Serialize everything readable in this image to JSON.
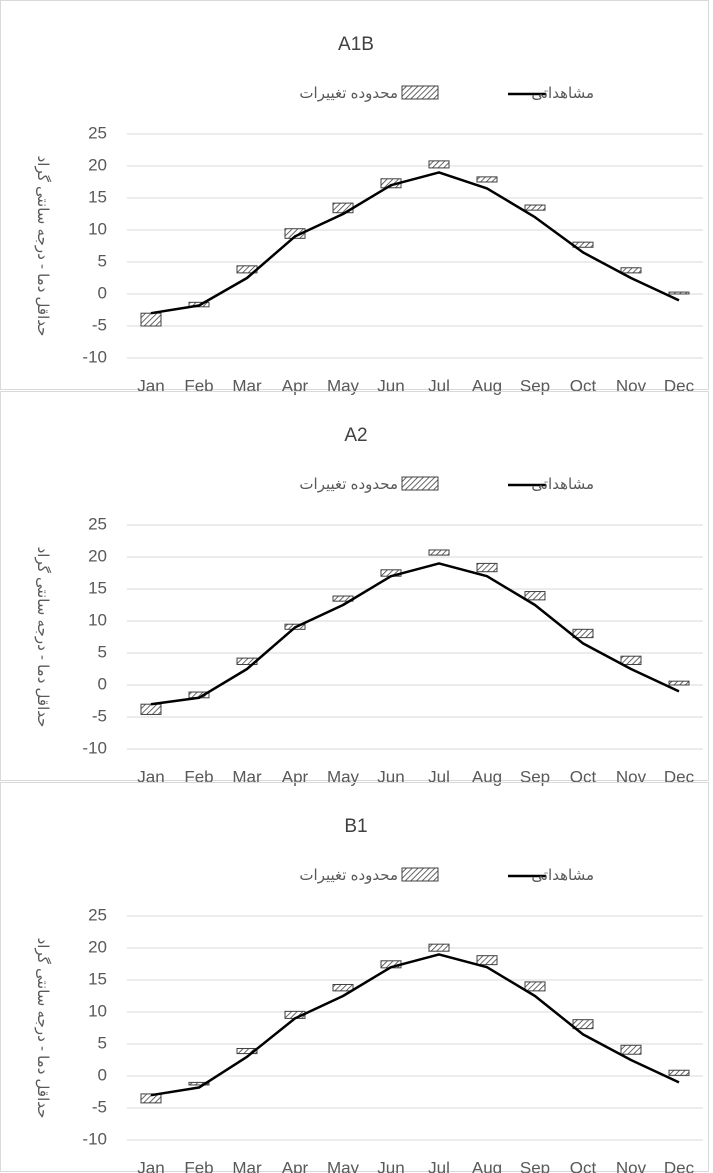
{
  "chart_data": [
    {
      "type": "range-line",
      "title": "A1B",
      "y_label": "حداقل دما - درجه سانتی گراد",
      "categories": [
        "Jan",
        "Feb",
        "Mar",
        "Apr",
        "May",
        "Jun",
        "Jul",
        "Aug",
        "Sep",
        "Oct",
        "Nov",
        "Dec"
      ],
      "series": [
        {
          "name": "محدوده تغییرات",
          "color": "#404040",
          "low": [
            -5,
            -2,
            3.3,
            8.7,
            12.7,
            16.6,
            19.7,
            17.5,
            13.1,
            7.3,
            3.3,
            0
          ],
          "high": [
            -3,
            -1.3,
            4.4,
            10.2,
            14.2,
            18,
            20.8,
            18.3,
            13.9,
            8.1,
            4.1,
            0.3
          ]
        },
        {
          "name": "مشاهداتی",
          "color": "#000000",
          "values": [
            -3,
            -1.8,
            2.5,
            9,
            12.5,
            17,
            19,
            16.5,
            12,
            6.5,
            2.5,
            -1
          ]
        }
      ],
      "ylim": [
        -10,
        25
      ],
      "yticks": [
        -10,
        -5,
        0,
        5,
        10,
        15,
        20,
        25
      ],
      "grid": true
    },
    {
      "type": "range-line",
      "title": "A2",
      "y_label": "حداقل دما - درجه سانتی گراد",
      "categories": [
        "Jan",
        "Feb",
        "Mar",
        "Apr",
        "May",
        "Jun",
        "Jul",
        "Aug",
        "Sep",
        "Oct",
        "Nov",
        "Dec"
      ],
      "series": [
        {
          "name": "محدوده تغییرات",
          "color": "#404040",
          "low": [
            -4.6,
            -2,
            3.2,
            8.7,
            13.1,
            17,
            20.3,
            17.7,
            13.3,
            7.4,
            3.2,
            0
          ],
          "high": [
            -3,
            -1.1,
            4.2,
            9.5,
            13.9,
            18,
            21.1,
            19,
            14.6,
            8.7,
            4.5,
            0.6
          ]
        },
        {
          "name": "مشاهداتی",
          "color": "#000000",
          "values": [
            -3,
            -2,
            2.5,
            9,
            12.5,
            17,
            19,
            17,
            12.5,
            6.5,
            2.5,
            -1
          ]
        }
      ],
      "ylim": [
        -10,
        25
      ],
      "yticks": [
        -10,
        -5,
        0,
        5,
        10,
        15,
        20,
        25
      ],
      "grid": true
    },
    {
      "type": "range-line",
      "title": "B1",
      "y_label": "حداقل دما - درجه سانتی گراد",
      "categories": [
        "Jan",
        "Feb",
        "Mar",
        "Apr",
        "May",
        "Jun",
        "Jul",
        "Aug",
        "Sep",
        "Oct",
        "Nov",
        "Dec"
      ],
      "series": [
        {
          "name": "محدوده تغییرات",
          "color": "#404040",
          "low": [
            -4.2,
            -1.4,
            3.5,
            9,
            13.3,
            16.9,
            19.5,
            17.4,
            13.3,
            7.4,
            3.4,
            0.1
          ],
          "high": [
            -2.8,
            -1,
            4.3,
            10.1,
            14.3,
            18,
            20.6,
            18.8,
            14.7,
            8.8,
            4.8,
            0.9
          ]
        },
        {
          "name": "مشاهداتی",
          "color": "#000000",
          "values": [
            -3,
            -1.8,
            3,
            9,
            12.5,
            17,
            19,
            17,
            12.5,
            6.5,
            2.5,
            -1
          ]
        }
      ],
      "ylim": [
        -10,
        25
      ],
      "yticks": [
        -10,
        -5,
        0,
        5,
        10,
        15,
        20,
        25
      ],
      "grid": true
    }
  ]
}
